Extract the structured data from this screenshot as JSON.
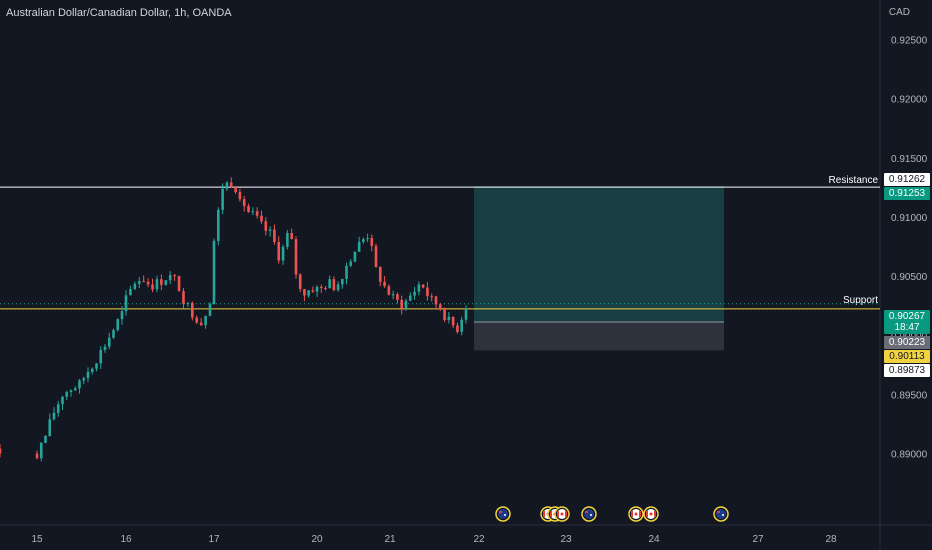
{
  "title": "Australian Dollar/Canadian Dollar, 1h, OANDA",
  "currency": "CAD",
  "price_axis": [
    "0.92500",
    "0.92000",
    "0.91500",
    "0.91000",
    "0.90500",
    "0.90000",
    "0.89500",
    "0.89000"
  ],
  "time_axis": [
    "15",
    "16",
    "17",
    "20",
    "21",
    "22",
    "23",
    "24",
    "27",
    "28"
  ],
  "lines": {
    "resistance": {
      "label": "Resistance",
      "price": 0.91253,
      "color": "#ffffff"
    },
    "support": {
      "label": "Support",
      "price": 0.90223,
      "color": "#f0d33e"
    }
  },
  "tags": {
    "target": "0.91262",
    "resistance": "0.91253",
    "last": "0.90267",
    "countdown": "18:47",
    "support": "0.90223",
    "entry": "0.90113",
    "stop": "0.89873"
  },
  "colors": {
    "up": "#26a69a",
    "down": "#ef5350",
    "background": "#131722"
  },
  "events": [
    {
      "icon": "australia-flag-icon"
    },
    {
      "icon": "canada-flag-icon"
    },
    {
      "icon": "canada-flag-icon"
    },
    {
      "icon": "canada-flag-icon"
    },
    {
      "icon": "australia-flag-icon"
    },
    {
      "icon": "canada-flag-icon"
    },
    {
      "icon": "canada-flag-icon"
    },
    {
      "icon": "australia-flag-icon"
    }
  ],
  "chart_data": {
    "type": "candlestick",
    "ylim": [
      0.8865,
      0.9275
    ],
    "position": {
      "type": "long",
      "entry": 0.90113,
      "target": 0.91262,
      "stop": 0.89873
    },
    "closes": [
      {
        "day": "14",
        "points": [
          [
            0.5,
            0.8975
          ],
          [
            0.62,
            0.8955
          ],
          [
            0.75,
            0.8925
          ],
          [
            0.85,
            0.8908
          ],
          [
            0.95,
            0.8902
          ]
        ]
      },
      {
        "day": "15",
        "points": [
          [
            0.0,
            0.89
          ],
          [
            0.1,
            0.8915
          ],
          [
            0.2,
            0.8935
          ],
          [
            0.3,
            0.895
          ],
          [
            0.4,
            0.8955
          ],
          [
            0.5,
            0.8958
          ],
          [
            0.6,
            0.897
          ],
          [
            0.7,
            0.898
          ],
          [
            0.8,
            0.8992
          ],
          [
            0.9,
            0.9005
          ],
          [
            1.0,
            0.9018
          ]
        ]
      },
      {
        "day": "16",
        "points": [
          [
            0.0,
            0.903
          ],
          [
            0.1,
            0.9045
          ],
          [
            0.2,
            0.9048
          ],
          [
            0.3,
            0.9042
          ],
          [
            0.4,
            0.9045
          ],
          [
            0.5,
            0.905
          ],
          [
            0.6,
            0.9046
          ],
          [
            0.7,
            0.9028
          ],
          [
            0.8,
            0.9018
          ],
          [
            0.9,
            0.901
          ],
          [
            1.0,
            0.903
          ]
        ]
      },
      {
        "day": "17",
        "points": [
          [
            0.0,
            0.908
          ],
          [
            0.1,
            0.9125
          ],
          [
            0.2,
            0.913
          ],
          [
            0.3,
            0.9122
          ],
          [
            0.4,
            0.9105
          ],
          [
            0.5,
            0.91
          ],
          [
            0.6,
            0.909
          ],
          [
            0.7,
            0.9085
          ],
          [
            0.8,
            0.9065
          ],
          [
            0.9,
            0.9085
          ],
          [
            1.0,
            0.907
          ]
        ]
      },
      {
        "day": "20",
        "points": [
          [
            0.0,
            0.905
          ],
          [
            0.1,
            0.9035
          ],
          [
            0.2,
            0.904
          ],
          [
            0.3,
            0.9038
          ],
          [
            0.4,
            0.9045
          ],
          [
            0.5,
            0.904
          ],
          [
            0.6,
            0.9055
          ],
          [
            0.7,
            0.9068
          ],
          [
            0.8,
            0.9078
          ],
          [
            0.9,
            0.9085
          ],
          [
            1.0,
            0.907
          ]
        ]
      },
      {
        "day": "21",
        "points": [
          [
            0.0,
            0.9055
          ],
          [
            0.1,
            0.904
          ],
          [
            0.2,
            0.903
          ],
          [
            0.3,
            0.9025
          ],
          [
            0.4,
            0.9035
          ],
          [
            0.5,
            0.9045
          ],
          [
            0.6,
            0.903
          ],
          [
            0.7,
            0.9025
          ],
          [
            0.8,
            0.9012
          ],
          [
            0.9,
            0.9005
          ],
          [
            1.0,
            0.9025
          ]
        ]
      }
    ]
  }
}
